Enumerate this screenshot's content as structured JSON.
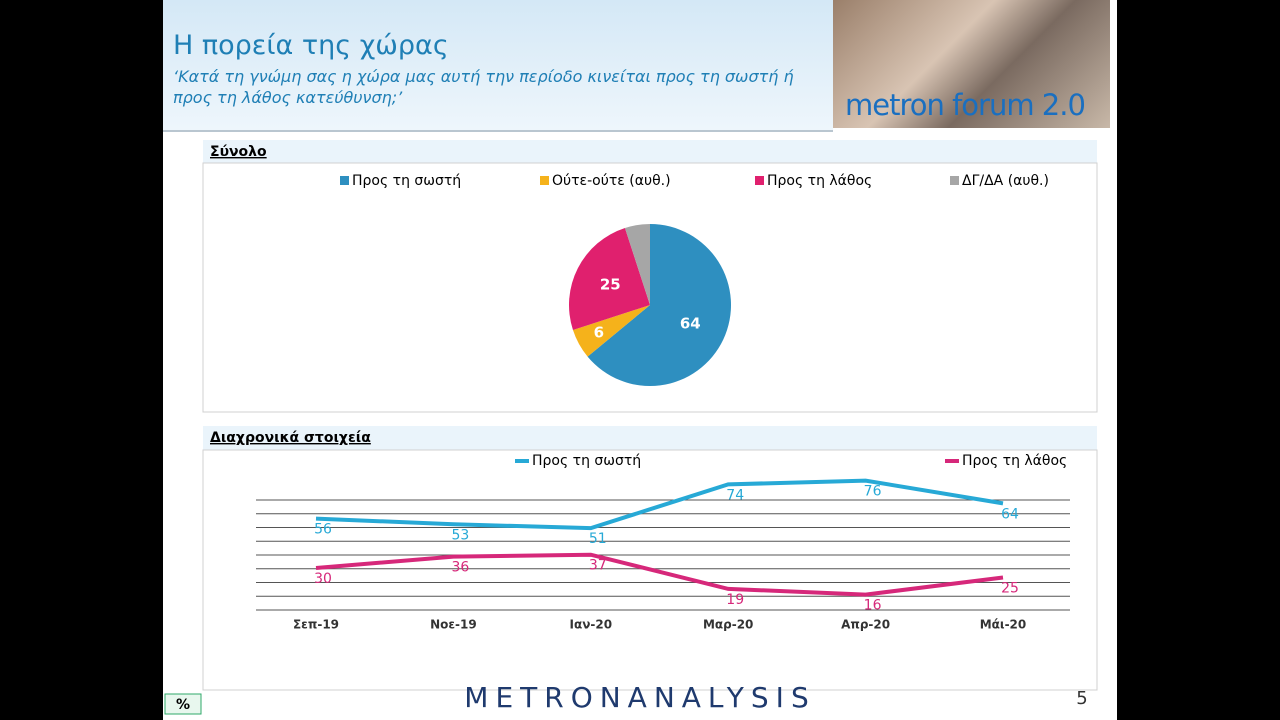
{
  "header": {
    "title": "Η πορεία της χώρας",
    "subtitle": "‘Κατά τη γνώμη σας η χώρα μας αυτή την περίοδο κινείται προς τη σωστή ή προς τη λάθος κατεύθυνση;’",
    "logo": "metron forum 2.0"
  },
  "chart_data": [
    {
      "type": "pie",
      "title": "Σύνολο",
      "categories": [
        "Προς τη σωστή",
        "Ούτε-ούτε (αυθ.)",
        "Προς τη λάθος",
        "ΔΓ/ΔΑ (αυθ.)"
      ],
      "values": [
        64,
        6,
        25,
        5
      ],
      "colors": [
        "#2e8fc0",
        "#f5b21b",
        "#e0206e",
        "#a6a6a6"
      ]
    },
    {
      "type": "line",
      "title": "Διαχρονικά στοιχεία",
      "categories": [
        "Σεπ-19",
        "Νοε-19",
        "Ιαν-20",
        "Μαρ-20",
        "Απρ-20",
        "Μάι-20"
      ],
      "series": [
        {
          "name": "Προς τη σωστή",
          "color": "#27a9d6",
          "values": [
            56,
            53,
            51,
            74,
            76,
            64
          ]
        },
        {
          "name": "Προς τη λάθος",
          "color": "#d6287a",
          "values": [
            30,
            36,
            37,
            19,
            16,
            25
          ]
        }
      ],
      "ylim": [
        0,
        90
      ]
    }
  ],
  "footer": {
    "unit": "%",
    "brand": "METRONANALYSIS",
    "page": "5"
  }
}
